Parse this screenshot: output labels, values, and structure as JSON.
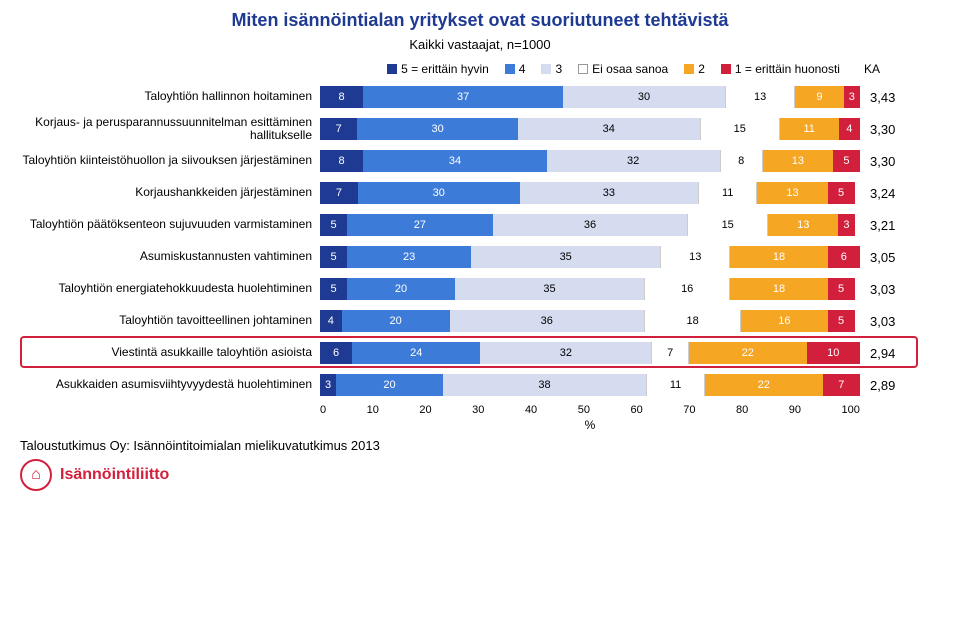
{
  "title": "Miten isännöintialan yritykset ovat suoriutuneet tehtävistä",
  "title_fontsize": 18,
  "subtitle": "Kaikki vastaajat, n=1000",
  "subtitle_fontsize": 13,
  "legend": {
    "items": [
      {
        "label": "5 = erittäin hyvin",
        "color": "#1f3a93"
      },
      {
        "label": "4",
        "color": "#3d7bd9"
      },
      {
        "label": "3",
        "color": "#d6dcf0"
      },
      {
        "label": "Ei osaa sanoa",
        "color": "#ffffff",
        "border": "#999999"
      },
      {
        "label": "2",
        "color": "#f5a623"
      },
      {
        "label": "1 = erittäin huonosti",
        "color": "#d11f3c"
      }
    ],
    "ka_label": "KA"
  },
  "chart": {
    "type": "stacked-bar-horizontal",
    "xlim": [
      0,
      100
    ],
    "xtick_step": 10,
    "xlabel": "%",
    "colors": {
      "5": "#1f3a93",
      "4": "#3d7bd9",
      "3": "#d6dcf0",
      "eos": "#ffffff",
      "2": "#f5a623",
      "1": "#d11f3c"
    },
    "text_color_dark": "#ffffff",
    "text_color_light": "#000000",
    "rows": [
      {
        "label": "Taloyhtiön hallinnon hoitaminen",
        "segments": [
          8,
          37,
          30,
          13,
          9,
          3
        ],
        "ka": "3,43"
      },
      {
        "label": "Korjaus- ja perusparannussuunnitelman esittäminen hallitukselle",
        "segments": [
          7,
          30,
          34,
          15,
          11,
          4
        ],
        "ka": "3,30"
      },
      {
        "label": "Taloyhtiön kiinteistöhuollon ja siivouksen järjestäminen",
        "segments": [
          8,
          34,
          32,
          8,
          13,
          5
        ],
        "ka": "3,30"
      },
      {
        "label": "Korjaushankkeiden järjestäminen",
        "segments": [
          7,
          30,
          33,
          11,
          13,
          5
        ],
        "ka": "3,24"
      },
      {
        "label": "Taloyhtiön päätöksenteon sujuvuuden varmistaminen",
        "segments": [
          5,
          27,
          36,
          15,
          13,
          3
        ],
        "ka": "3,21"
      },
      {
        "label": "Asumiskustannusten vahtiminen",
        "segments": [
          5,
          23,
          35,
          13,
          18,
          6
        ],
        "ka": "3,05"
      },
      {
        "label": "Taloyhtiön energiatehokkuudesta huolehtiminen",
        "segments": [
          5,
          20,
          35,
          16,
          18,
          5
        ],
        "ka": "3,03"
      },
      {
        "label": "Taloyhtiön tavoitteellinen johtaminen",
        "segments": [
          4,
          20,
          36,
          18,
          16,
          5
        ],
        "ka": "3,03"
      },
      {
        "label": "Viestintä asukkaille taloyhtiön asioista",
        "segments": [
          6,
          24,
          32,
          7,
          22,
          10
        ],
        "ka": "2,94",
        "highlight": true
      },
      {
        "label": "Asukkaiden asumisviihtyvyydestä huolehtiminen",
        "segments": [
          3,
          20,
          38,
          11,
          22,
          7
        ],
        "ka": "2,89"
      }
    ],
    "highlight_color": "#d11f3c",
    "label_fontsize": 12,
    "value_fontsize": 11,
    "ka_fontsize": 13
  },
  "footer": "Taloustutkimus Oy: Isännöintitoimialan mielikuvatutkimus 2013",
  "logo_text": "Isännöintiliitto",
  "background_color": "#ffffff"
}
